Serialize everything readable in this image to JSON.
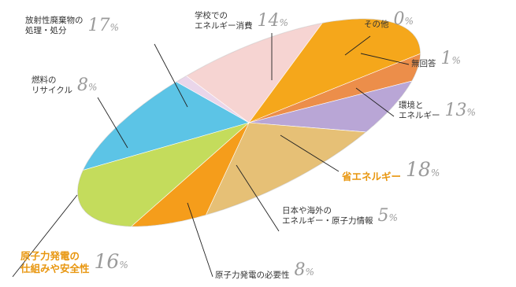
{
  "chart_data": {
    "type": "pie",
    "slices": [
      {
        "id": "school",
        "name_lines": [
          "学校での",
          "エネルギー消費"
        ],
        "value": 14,
        "color": "#5cc4e6"
      },
      {
        "id": "other",
        "name_lines": [
          "その他"
        ],
        "value": 0,
        "color": "#cfd6dc"
      },
      {
        "id": "noanswer",
        "name_lines": [
          "無回答"
        ],
        "value": 1,
        "color": "#ead6ea"
      },
      {
        "id": "env",
        "name_lines": [
          "環境と",
          "エネルギー"
        ],
        "value": 13,
        "color": "#f6d4d2"
      },
      {
        "id": "saving",
        "name_lines": [
          "省エネルギー"
        ],
        "value": 18,
        "color": "#f5a71b"
      },
      {
        "id": "info",
        "name_lines": [
          "日本や海外の",
          "エネルギー・原子力情報"
        ],
        "value": 5,
        "color": "#ec8e4a"
      },
      {
        "id": "necessity",
        "name_lines": [
          "原子力発電の必要性"
        ],
        "value": 8,
        "color": "#b9a6d6"
      },
      {
        "id": "mechanism",
        "name_lines": [
          "原子力発電の",
          "仕組みや安全性"
        ],
        "value": 16,
        "color": "#e6c076"
      },
      {
        "id": "recycle",
        "name_lines": [
          "燃料の",
          "リサイクル"
        ],
        "value": 8,
        "color": "#f59d1b"
      },
      {
        "id": "waste",
        "name_lines": [
          "放射性廃棄物の",
          "処理・処分"
        ],
        "value": 17,
        "color": "#c4dc5c"
      }
    ],
    "unit": "%",
    "highlighted": [
      "saving",
      "mechanism"
    ],
    "legend": "none",
    "grid": false
  }
}
